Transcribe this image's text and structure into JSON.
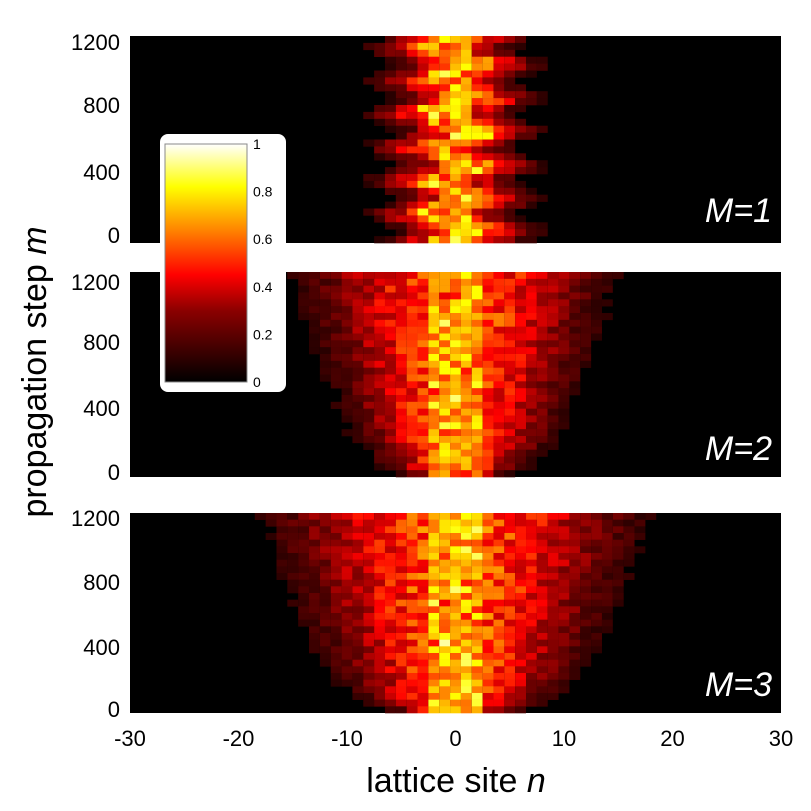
{
  "chart_data": {
    "type": "heatmap",
    "xlabel": "lattice site",
    "xlabel_var": "n",
    "ylabel": "propagation step",
    "ylabel_var": "m",
    "xlim": [
      -30,
      30
    ],
    "ylim": [
      0,
      1200
    ],
    "x_ticks": [
      "-30",
      "-20",
      "-10",
      "0",
      "10",
      "20",
      "30"
    ],
    "y_ticks": [
      "0",
      "400",
      "800",
      "1200"
    ],
    "colorbar": {
      "range": [
        0,
        1
      ],
      "ticks": [
        "0",
        "0.2",
        "0.4",
        "0.6",
        "0.8",
        "1"
      ],
      "colormap": "hot",
      "colors": [
        "#000000",
        "#8b0000",
        "#ff0000",
        "#ff8c00",
        "#ffff00",
        "#ffffff"
      ]
    },
    "panels": [
      {
        "label": "M=1",
        "spread_half_width_sites": 6.5
      },
      {
        "label": "M=2",
        "spread_half_width_sites": 14
      },
      {
        "label": "M=3",
        "spread_half_width_sites": 17
      }
    ]
  }
}
